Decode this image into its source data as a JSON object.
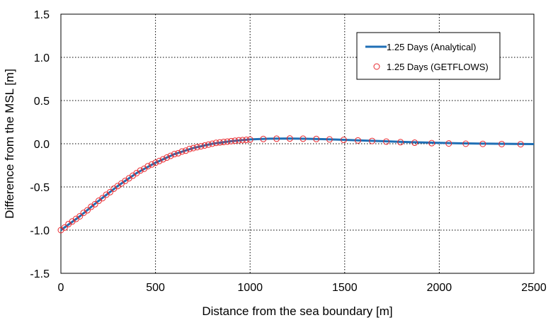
{
  "chart_data": {
    "type": "line",
    "title": "",
    "xlabel": "Distance from the sea boundary [m]",
    "ylabel": "Difference from the MSL [m]",
    "xlim": [
      0,
      2500
    ],
    "ylim": [
      -1.5,
      1.5
    ],
    "x_ticks": [
      0,
      500,
      1000,
      1500,
      2000,
      2500
    ],
    "x_tick_labels": [
      "0",
      "500",
      "1000",
      "1500",
      "2000",
      "2500"
    ],
    "y_ticks": [
      -1.5,
      -1.0,
      -0.5,
      0.0,
      0.5,
      1.0,
      1.5
    ],
    "y_tick_labels": [
      "-1.5",
      "-1.0",
      "-0.5",
      "0.0",
      "0.5",
      "1.0",
      "1.5"
    ],
    "grid": true,
    "legend_position": "top-right",
    "series": [
      {
        "name": "1.25 Days (Analytical)",
        "style": "line",
        "color": "#1f6fb5",
        "x": [
          0,
          100,
          200,
          300,
          400,
          500,
          600,
          700,
          800,
          900,
          1000,
          1100,
          1200,
          1300,
          1400,
          1500,
          1600,
          1700,
          1800,
          1900,
          2000,
          2100,
          2200,
          2300,
          2400,
          2500
        ],
        "y": [
          -1.0,
          -0.84,
          -0.66,
          -0.49,
          -0.34,
          -0.22,
          -0.12,
          -0.05,
          0.0,
          0.03,
          0.05,
          0.058,
          0.06,
          0.057,
          0.052,
          0.045,
          0.037,
          0.03,
          0.022,
          0.015,
          0.01,
          0.005,
          0.002,
          0.0,
          -0.002,
          -0.004
        ]
      },
      {
        "name": "1.25 Days (GETFLOWS)",
        "style": "markers",
        "color": "#e8282e",
        "x": [
          0,
          20,
          40,
          60,
          80,
          100,
          120,
          140,
          160,
          180,
          200,
          220,
          240,
          260,
          280,
          300,
          320,
          340,
          360,
          380,
          400,
          420,
          440,
          460,
          480,
          500,
          520,
          540,
          560,
          580,
          600,
          620,
          640,
          660,
          680,
          700,
          720,
          740,
          760,
          780,
          800,
          820,
          840,
          860,
          880,
          900,
          920,
          940,
          960,
          980,
          1000,
          1070,
          1140,
          1210,
          1280,
          1350,
          1420,
          1495,
          1570,
          1645,
          1720,
          1795,
          1870,
          1960,
          2050,
          2140,
          2230,
          2330,
          2430
        ],
        "y": [
          -1.0,
          -0.97,
          -0.93,
          -0.9,
          -0.87,
          -0.84,
          -0.8,
          -0.77,
          -0.73,
          -0.7,
          -0.66,
          -0.63,
          -0.59,
          -0.56,
          -0.52,
          -0.49,
          -0.46,
          -0.43,
          -0.4,
          -0.37,
          -0.34,
          -0.31,
          -0.29,
          -0.26,
          -0.24,
          -0.22,
          -0.2,
          -0.18,
          -0.16,
          -0.14,
          -0.12,
          -0.11,
          -0.09,
          -0.08,
          -0.06,
          -0.05,
          -0.04,
          -0.03,
          -0.02,
          -0.01,
          0.0,
          0.01,
          0.015,
          0.02,
          0.025,
          0.03,
          0.035,
          0.04,
          0.042,
          0.045,
          0.048,
          0.055,
          0.058,
          0.06,
          0.058,
          0.055,
          0.05,
          0.045,
          0.038,
          0.032,
          0.025,
          0.018,
          0.012,
          0.007,
          0.003,
          0.0,
          -0.002,
          -0.004,
          -0.006
        ]
      }
    ]
  }
}
